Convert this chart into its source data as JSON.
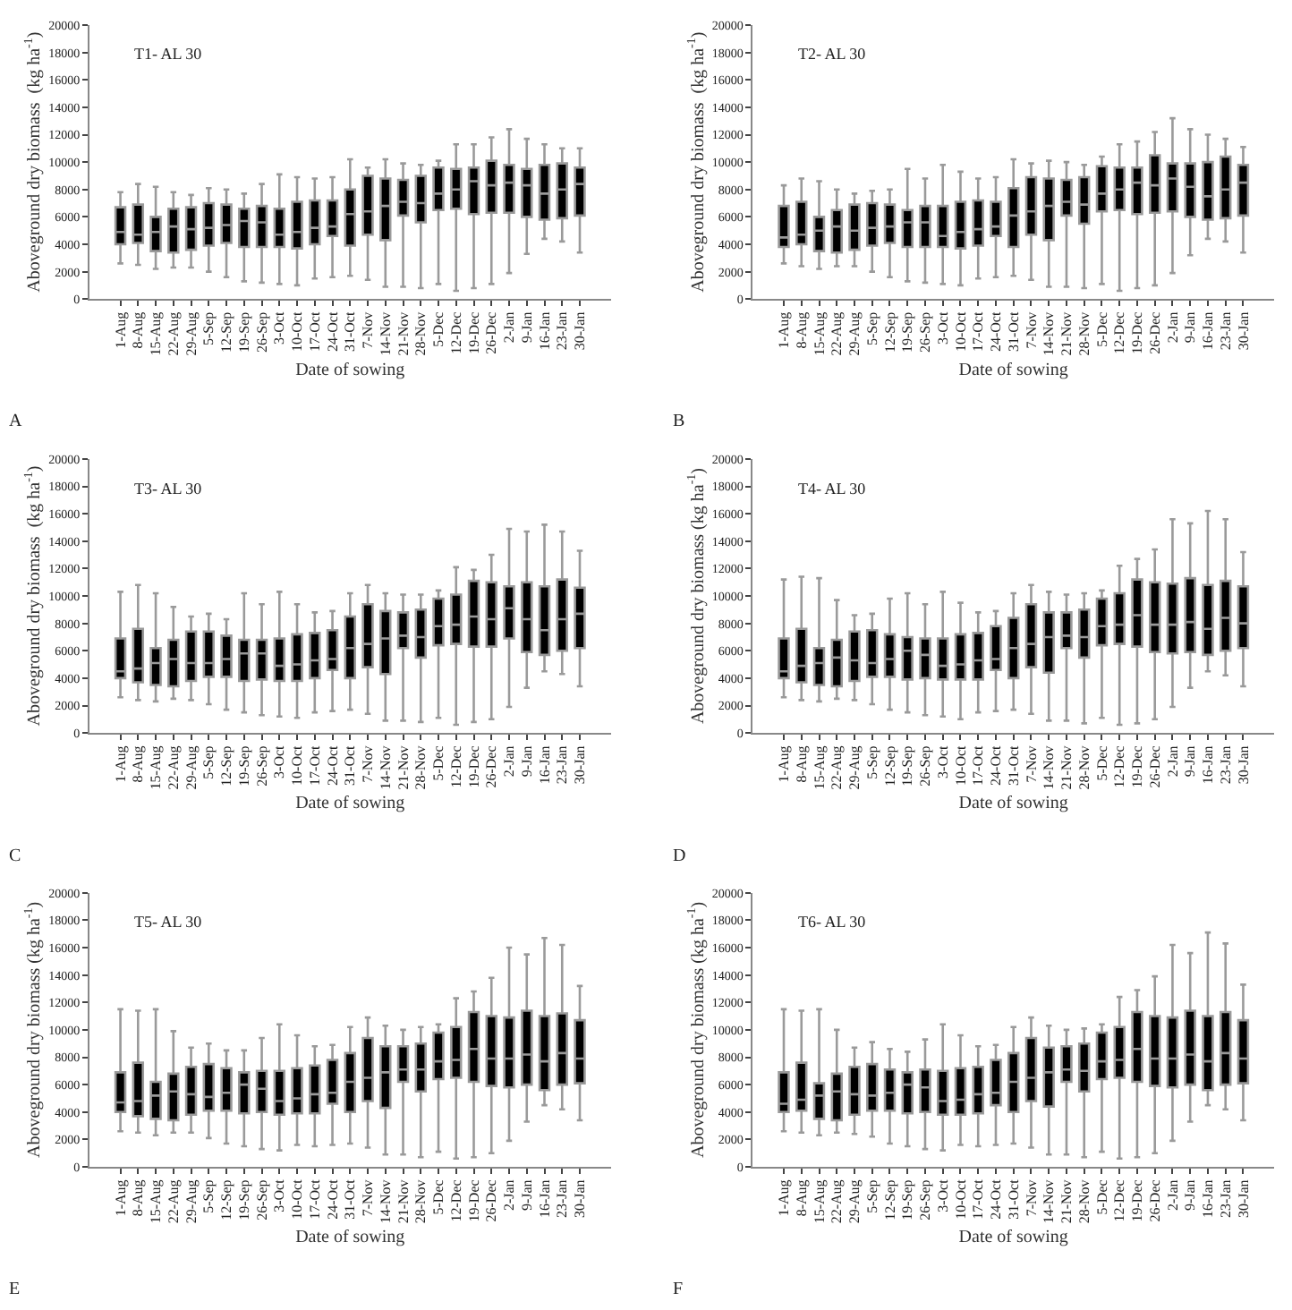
{
  "chart_data": [
    {
      "type": "box",
      "title": "T1- AL 30",
      "xlabel": "Date of sowing",
      "ylabel": "Aboveground dry biomass  (kg ha$^{-1}$)",
      "annotations": [
        "A"
      ],
      "categories": [
        "1-Aug",
        "8-Aug",
        "15-Aug",
        "22-Aug",
        "29-Aug",
        "5-Sep",
        "12-Sep",
        "19-Sep",
        "26-Sep",
        "3-Oct",
        "10-Oct",
        "17-Oct",
        "24-Oct",
        "31-Oct",
        "7-Nov",
        "14-Nov",
        "21-Nov",
        "28-Nov",
        "5-Dec",
        "12-Dec",
        "19-Dec",
        "26-Dec",
        "2-Jan",
        "9-Jan",
        "16-Jan",
        "23-Jan",
        "30-Jan"
      ],
      "ylim": [
        0,
        20000
      ],
      "yticks": [
        0,
        2000,
        4000,
        6000,
        8000,
        10000,
        12000,
        14000,
        16000,
        18000,
        20000
      ],
      "grid": false,
      "legend": false,
      "series": [
        {
          "color": "#000000",
          "boxes": [
            {
              "low": 2600,
              "q1": 4000,
              "median": 4900,
              "q3": 6700,
              "high": 7800
            },
            {
              "low": 2500,
              "q1": 4100,
              "median": 4700,
              "q3": 6900,
              "high": 8400
            },
            {
              "low": 2200,
              "q1": 3500,
              "median": 4900,
              "q3": 6000,
              "high": 8200
            },
            {
              "low": 2300,
              "q1": 3400,
              "median": 5300,
              "q3": 6600,
              "high": 7800
            },
            {
              "low": 2300,
              "q1": 3600,
              "median": 5100,
              "q3": 6700,
              "high": 7600
            },
            {
              "low": 2000,
              "q1": 3900,
              "median": 5200,
              "q3": 7000,
              "high": 8100
            },
            {
              "low": 1600,
              "q1": 4100,
              "median": 5400,
              "q3": 6900,
              "high": 8000
            },
            {
              "low": 1300,
              "q1": 3800,
              "median": 5700,
              "q3": 6600,
              "high": 7700
            },
            {
              "low": 1200,
              "q1": 3800,
              "median": 5600,
              "q3": 6800,
              "high": 8400
            },
            {
              "low": 1100,
              "q1": 3800,
              "median": 4700,
              "q3": 6600,
              "high": 9100
            },
            {
              "low": 1000,
              "q1": 3700,
              "median": 4900,
              "q3": 7100,
              "high": 8900
            },
            {
              "low": 1500,
              "q1": 4000,
              "median": 5200,
              "q3": 7200,
              "high": 8800
            },
            {
              "low": 1600,
              "q1": 4600,
              "median": 5300,
              "q3": 7200,
              "high": 8900
            },
            {
              "low": 1700,
              "q1": 3900,
              "median": 6200,
              "q3": 8000,
              "high": 10200
            },
            {
              "low": 1400,
              "q1": 4700,
              "median": 6400,
              "q3": 9000,
              "high": 9600
            },
            {
              "low": 900,
              "q1": 4300,
              "median": 6800,
              "q3": 8800,
              "high": 10200
            },
            {
              "low": 900,
              "q1": 6100,
              "median": 7100,
              "q3": 8700,
              "high": 9900
            },
            {
              "low": 800,
              "q1": 5600,
              "median": 7000,
              "q3": 9000,
              "high": 9800
            },
            {
              "low": 1100,
              "q1": 6500,
              "median": 7700,
              "q3": 9600,
              "high": 10100
            },
            {
              "low": 600,
              "q1": 6600,
              "median": 8000,
              "q3": 9500,
              "high": 11300
            },
            {
              "low": 800,
              "q1": 6200,
              "median": 8600,
              "q3": 9600,
              "high": 11300
            },
            {
              "low": 1100,
              "q1": 6300,
              "median": 8300,
              "q3": 10100,
              "high": 11800
            },
            {
              "low": 1900,
              "q1": 6300,
              "median": 8500,
              "q3": 9800,
              "high": 12400
            },
            {
              "low": 3300,
              "q1": 6000,
              "median": 8300,
              "q3": 9500,
              "high": 11700
            },
            {
              "low": 4400,
              "q1": 5800,
              "median": 7700,
              "q3": 9800,
              "high": 11300
            },
            {
              "low": 4200,
              "q1": 5900,
              "median": 8000,
              "q3": 9900,
              "high": 11000
            },
            {
              "low": 3400,
              "q1": 6100,
              "median": 8400,
              "q3": 9600,
              "high": 11000
            }
          ]
        }
      ]
    },
    {
      "type": "box",
      "title": "T2- AL 30",
      "xlabel": "Date of sowing",
      "ylabel": "Aboveground dry biomass  (kg ha$^{-1}$)",
      "annotations": [
        "B"
      ],
      "categories": [
        "1-Aug",
        "8-Aug",
        "15-Aug",
        "22-Aug",
        "29-Aug",
        "5-Sep",
        "12-Sep",
        "19-Sep",
        "26-Sep",
        "3-Oct",
        "10-Oct",
        "17-Oct",
        "24-Oct",
        "31-Oct",
        "7-Nov",
        "14-Nov",
        "21-Nov",
        "28-Nov",
        "5-Dec",
        "12-Dec",
        "19-Dec",
        "26-Dec",
        "2-Jan",
        "9-Jan",
        "16-Jan",
        "23-Jan",
        "30-Jan"
      ],
      "ylim": [
        0,
        20000
      ],
      "yticks": [
        0,
        2000,
        4000,
        6000,
        8000,
        10000,
        12000,
        14000,
        16000,
        18000,
        20000
      ],
      "grid": false,
      "legend": false,
      "series": [
        {
          "color": "#000000",
          "boxes": [
            {
              "low": 2600,
              "q1": 3800,
              "median": 4500,
              "q3": 6800,
              "high": 8300
            },
            {
              "low": 2400,
              "q1": 4000,
              "median": 4700,
              "q3": 7100,
              "high": 8800
            },
            {
              "low": 2200,
              "q1": 3500,
              "median": 5000,
              "q3": 6000,
              "high": 8600
            },
            {
              "low": 2400,
              "q1": 3400,
              "median": 5300,
              "q3": 6500,
              "high": 8000
            },
            {
              "low": 2400,
              "q1": 3600,
              "median": 5000,
              "q3": 6900,
              "high": 7700
            },
            {
              "low": 2000,
              "q1": 3900,
              "median": 5200,
              "q3": 7000,
              "high": 7900
            },
            {
              "low": 1600,
              "q1": 4100,
              "median": 5300,
              "q3": 6900,
              "high": 8000
            },
            {
              "low": 1300,
              "q1": 3800,
              "median": 5600,
              "q3": 6500,
              "high": 9500
            },
            {
              "low": 1200,
              "q1": 3800,
              "median": 5600,
              "q3": 6800,
              "high": 8800
            },
            {
              "low": 1100,
              "q1": 3800,
              "median": 4600,
              "q3": 6800,
              "high": 9800
            },
            {
              "low": 1000,
              "q1": 3700,
              "median": 4900,
              "q3": 7100,
              "high": 9300
            },
            {
              "low": 1500,
              "q1": 3900,
              "median": 5100,
              "q3": 7200,
              "high": 8800
            },
            {
              "low": 1600,
              "q1": 4600,
              "median": 5300,
              "q3": 7100,
              "high": 8900
            },
            {
              "low": 1700,
              "q1": 3800,
              "median": 6100,
              "q3": 8100,
              "high": 10200
            },
            {
              "low": 1400,
              "q1": 4700,
              "median": 6400,
              "q3": 8900,
              "high": 9900
            },
            {
              "low": 900,
              "q1": 4300,
              "median": 6800,
              "q3": 8800,
              "high": 10100
            },
            {
              "low": 900,
              "q1": 6100,
              "median": 7100,
              "q3": 8700,
              "high": 10000
            },
            {
              "low": 800,
              "q1": 5500,
              "median": 6900,
              "q3": 8900,
              "high": 9800
            },
            {
              "low": 1100,
              "q1": 6400,
              "median": 7700,
              "q3": 9700,
              "high": 10400
            },
            {
              "low": 600,
              "q1": 6500,
              "median": 8000,
              "q3": 9600,
              "high": 11300
            },
            {
              "low": 800,
              "q1": 6200,
              "median": 8500,
              "q3": 9600,
              "high": 11500
            },
            {
              "low": 1000,
              "q1": 6300,
              "median": 8300,
              "q3": 10500,
              "high": 12200
            },
            {
              "low": 1900,
              "q1": 6400,
              "median": 8800,
              "q3": 9900,
              "high": 13200
            },
            {
              "low": 3200,
              "q1": 6000,
              "median": 8200,
              "q3": 9900,
              "high": 12400
            },
            {
              "low": 4400,
              "q1": 5800,
              "median": 7500,
              "q3": 10000,
              "high": 12000
            },
            {
              "low": 4200,
              "q1": 5900,
              "median": 8000,
              "q3": 10400,
              "high": 11700
            },
            {
              "low": 3400,
              "q1": 6100,
              "median": 8500,
              "q3": 9800,
              "high": 11100
            }
          ]
        }
      ]
    },
    {
      "type": "box",
      "title": "T3- AL 30",
      "xlabel": "Date of sowing",
      "ylabel": "Aboveground dry biomass  (kg ha$^{-1}$)",
      "annotations": [
        "C"
      ],
      "categories": [
        "1-Aug",
        "8-Aug",
        "15-Aug",
        "22-Aug",
        "29-Aug",
        "5-Sep",
        "12-Sep",
        "19-Sep",
        "26-Sep",
        "3-Oct",
        "10-Oct",
        "17-Oct",
        "24-Oct",
        "31-Oct",
        "7-Nov",
        "14-Nov",
        "21-Nov",
        "28-Nov",
        "5-Dec",
        "12-Dec",
        "19-Dec",
        "26-Dec",
        "2-Jan",
        "9-Jan",
        "16-Jan",
        "23-Jan",
        "30-Jan"
      ],
      "ylim": [
        0,
        20000
      ],
      "yticks": [
        0,
        2000,
        4000,
        6000,
        8000,
        10000,
        12000,
        14000,
        16000,
        18000,
        20000
      ],
      "grid": false,
      "legend": false,
      "series": [
        {
          "color": "#000000",
          "boxes": [
            {
              "low": 2600,
              "q1": 4000,
              "median": 4500,
              "q3": 6900,
              "high": 10300
            },
            {
              "low": 2400,
              "q1": 3700,
              "median": 4700,
              "q3": 7600,
              "high": 10800
            },
            {
              "low": 2300,
              "q1": 3500,
              "median": 5100,
              "q3": 6200,
              "high": 10200
            },
            {
              "low": 2500,
              "q1": 3400,
              "median": 5400,
              "q3": 6800,
              "high": 9200
            },
            {
              "low": 2400,
              "q1": 3800,
              "median": 5100,
              "q3": 7400,
              "high": 8500
            },
            {
              "low": 2100,
              "q1": 4100,
              "median": 5100,
              "q3": 7400,
              "high": 8700
            },
            {
              "low": 1700,
              "q1": 4100,
              "median": 5400,
              "q3": 7100,
              "high": 8300
            },
            {
              "low": 1500,
              "q1": 3800,
              "median": 5800,
              "q3": 6800,
              "high": 10200
            },
            {
              "low": 1300,
              "q1": 3900,
              "median": 5800,
              "q3": 6800,
              "high": 9400
            },
            {
              "low": 1200,
              "q1": 3800,
              "median": 4900,
              "q3": 6900,
              "high": 10300
            },
            {
              "low": 1100,
              "q1": 3800,
              "median": 5000,
              "q3": 7200,
              "high": 9400
            },
            {
              "low": 1500,
              "q1": 4000,
              "median": 5300,
              "q3": 7300,
              "high": 8800
            },
            {
              "low": 1600,
              "q1": 4600,
              "median": 5400,
              "q3": 7500,
              "high": 8900
            },
            {
              "low": 1700,
              "q1": 4000,
              "median": 6200,
              "q3": 8500,
              "high": 10200
            },
            {
              "low": 1400,
              "q1": 4800,
              "median": 6500,
              "q3": 9400,
              "high": 10800
            },
            {
              "low": 900,
              "q1": 4300,
              "median": 6900,
              "q3": 8900,
              "high": 10200
            },
            {
              "low": 900,
              "q1": 6200,
              "median": 7100,
              "q3": 8800,
              "high": 10100
            },
            {
              "low": 800,
              "q1": 5500,
              "median": 7000,
              "q3": 9000,
              "high": 10100
            },
            {
              "low": 1100,
              "q1": 6400,
              "median": 7800,
              "q3": 9800,
              "high": 10400
            },
            {
              "low": 600,
              "q1": 6500,
              "median": 7900,
              "q3": 10100,
              "high": 12100
            },
            {
              "low": 800,
              "q1": 6300,
              "median": 8500,
              "q3": 11100,
              "high": 11900
            },
            {
              "low": 1000,
              "q1": 6300,
              "median": 8300,
              "q3": 11000,
              "high": 13000
            },
            {
              "low": 1900,
              "q1": 6900,
              "median": 9100,
              "q3": 10700,
              "high": 14900
            },
            {
              "low": 3300,
              "q1": 5900,
              "median": 8300,
              "q3": 11000,
              "high": 14700
            },
            {
              "low": 4500,
              "q1": 5700,
              "median": 7500,
              "q3": 10700,
              "high": 15200
            },
            {
              "low": 4300,
              "q1": 6000,
              "median": 8300,
              "q3": 11200,
              "high": 14700
            },
            {
              "low": 3400,
              "q1": 6200,
              "median": 8700,
              "q3": 10600,
              "high": 13300
            }
          ]
        }
      ]
    },
    {
      "type": "box",
      "title": "T4- AL 30",
      "xlabel": "Date of sowing",
      "ylabel": "Aboveground dry biomass (kg ha$^{-1}$)",
      "annotations": [
        "D"
      ],
      "categories": [
        "1-Aug",
        "8-Aug",
        "15-Aug",
        "22-Aug",
        "29-Aug",
        "5-Sep",
        "12-Sep",
        "19-Sep",
        "26-Sep",
        "3-Oct",
        "10-Oct",
        "17-Oct",
        "24-Oct",
        "31-Oct",
        "7-Nov",
        "14-Nov",
        "21-Nov",
        "28-Nov",
        "5-Dec",
        "12-Dec",
        "19-Dec",
        "26-Dec",
        "2-Jan",
        "9-Jan",
        "16-Jan",
        "23-Jan",
        "30-Jan"
      ],
      "ylim": [
        0,
        20000
      ],
      "yticks": [
        0,
        2000,
        4000,
        6000,
        8000,
        10000,
        12000,
        14000,
        16000,
        18000,
        20000
      ],
      "grid": false,
      "legend": false,
      "series": [
        {
          "color": "#000000",
          "boxes": [
            {
              "low": 2600,
              "q1": 4000,
              "median": 4500,
              "q3": 6900,
              "high": 11200
            },
            {
              "low": 2400,
              "q1": 3700,
              "median": 4900,
              "q3": 7600,
              "high": 11400
            },
            {
              "low": 2300,
              "q1": 3500,
              "median": 5100,
              "q3": 6200,
              "high": 11300
            },
            {
              "low": 2500,
              "q1": 3400,
              "median": 5500,
              "q3": 6800,
              "high": 9700
            },
            {
              "low": 2400,
              "q1": 3800,
              "median": 5300,
              "q3": 7400,
              "high": 8600
            },
            {
              "low": 2100,
              "q1": 4100,
              "median": 5100,
              "q3": 7500,
              "high": 8700
            },
            {
              "low": 1700,
              "q1": 4100,
              "median": 5400,
              "q3": 7200,
              "high": 9800
            },
            {
              "low": 1500,
              "q1": 3900,
              "median": 6000,
              "q3": 7000,
              "high": 10200
            },
            {
              "low": 1300,
              "q1": 4000,
              "median": 5700,
              "q3": 6900,
              "high": 9400
            },
            {
              "low": 1200,
              "q1": 3900,
              "median": 4900,
              "q3": 6900,
              "high": 10300
            },
            {
              "low": 1000,
              "q1": 3900,
              "median": 5000,
              "q3": 7200,
              "high": 9500
            },
            {
              "low": 1500,
              "q1": 3900,
              "median": 5300,
              "q3": 7300,
              "high": 8800
            },
            {
              "low": 1600,
              "q1": 4600,
              "median": 5400,
              "q3": 7800,
              "high": 8900
            },
            {
              "low": 1700,
              "q1": 4000,
              "median": 6200,
              "q3": 8400,
              "high": 10200
            },
            {
              "low": 1400,
              "q1": 4800,
              "median": 6500,
              "q3": 9400,
              "high": 10800
            },
            {
              "low": 900,
              "q1": 4400,
              "median": 7000,
              "q3": 8800,
              "high": 10300
            },
            {
              "low": 900,
              "q1": 6200,
              "median": 7100,
              "q3": 8800,
              "high": 10100
            },
            {
              "low": 700,
              "q1": 5500,
              "median": 7000,
              "q3": 9000,
              "high": 10200
            },
            {
              "low": 1100,
              "q1": 6400,
              "median": 7800,
              "q3": 9800,
              "high": 10400
            },
            {
              "low": 600,
              "q1": 6500,
              "median": 7900,
              "q3": 10200,
              "high": 12200
            },
            {
              "low": 700,
              "q1": 6300,
              "median": 8600,
              "q3": 11200,
              "high": 12700
            },
            {
              "low": 1000,
              "q1": 5900,
              "median": 7900,
              "q3": 11000,
              "high": 13400
            },
            {
              "low": 1900,
              "q1": 5800,
              "median": 7900,
              "q3": 10900,
              "high": 15600
            },
            {
              "low": 3300,
              "q1": 5900,
              "median": 8100,
              "q3": 11300,
              "high": 15300
            },
            {
              "low": 4500,
              "q1": 5700,
              "median": 7600,
              "q3": 10800,
              "high": 16200
            },
            {
              "low": 4200,
              "q1": 6000,
              "median": 8400,
              "q3": 11100,
              "high": 15600
            },
            {
              "low": 3400,
              "q1": 6200,
              "median": 8000,
              "q3": 10700,
              "high": 13200
            }
          ]
        }
      ]
    },
    {
      "type": "box",
      "title": "T5- AL 30",
      "xlabel": "Date of sowing",
      "ylabel": "Aboveground dry biomass (kg ha$^{-1}$)",
      "annotations": [
        "E"
      ],
      "categories": [
        "1-Aug",
        "8-Aug",
        "15-Aug",
        "22-Aug",
        "29-Aug",
        "5-Sep",
        "12-Sep",
        "19-Sep",
        "26-Sep",
        "3-Oct",
        "10-Oct",
        "17-Oct",
        "24-Oct",
        "31-Oct",
        "7-Nov",
        "14-Nov",
        "21-Nov",
        "28-Nov",
        "5-Dec",
        "12-Dec",
        "19-Dec",
        "26-Dec",
        "2-Jan",
        "9-Jan",
        "16-Jan",
        "23-Jan",
        "30-Jan"
      ],
      "ylim": [
        0,
        20000
      ],
      "yticks": [
        0,
        2000,
        4000,
        6000,
        8000,
        10000,
        12000,
        14000,
        16000,
        18000,
        20000
      ],
      "grid": false,
      "legend": false,
      "series": [
        {
          "color": "#000000",
          "boxes": [
            {
              "low": 2600,
              "q1": 4000,
              "median": 4700,
              "q3": 6900,
              "high": 11500
            },
            {
              "low": 2500,
              "q1": 3700,
              "median": 4800,
              "q3": 7600,
              "high": 11400
            },
            {
              "low": 2300,
              "q1": 3500,
              "median": 5200,
              "q3": 6200,
              "high": 11500
            },
            {
              "low": 2500,
              "q1": 3400,
              "median": 5500,
              "q3": 6800,
              "high": 9900
            },
            {
              "low": 2500,
              "q1": 3800,
              "median": 5300,
              "q3": 7300,
              "high": 8700
            },
            {
              "low": 2100,
              "q1": 4100,
              "median": 5100,
              "q3": 7500,
              "high": 9000
            },
            {
              "low": 1700,
              "q1": 4100,
              "median": 5400,
              "q3": 7200,
              "high": 8500
            },
            {
              "low": 1500,
              "q1": 3900,
              "median": 6000,
              "q3": 6900,
              "high": 8500
            },
            {
              "low": 1300,
              "q1": 4000,
              "median": 5700,
              "q3": 7000,
              "high": 9400
            },
            {
              "low": 1200,
              "q1": 3800,
              "median": 4800,
              "q3": 7000,
              "high": 10400
            },
            {
              "low": 1600,
              "q1": 3900,
              "median": 5000,
              "q3": 7200,
              "high": 9600
            },
            {
              "low": 1500,
              "q1": 3900,
              "median": 5300,
              "q3": 7400,
              "high": 8800
            },
            {
              "low": 1600,
              "q1": 4600,
              "median": 5400,
              "q3": 7800,
              "high": 8900
            },
            {
              "low": 1700,
              "q1": 4000,
              "median": 6200,
              "q3": 8300,
              "high": 10200
            },
            {
              "low": 1400,
              "q1": 4800,
              "median": 6500,
              "q3": 9400,
              "high": 10900
            },
            {
              "low": 900,
              "q1": 4300,
              "median": 6900,
              "q3": 8800,
              "high": 10300
            },
            {
              "low": 900,
              "q1": 6200,
              "median": 7100,
              "q3": 8800,
              "high": 10000
            },
            {
              "low": 700,
              "q1": 5500,
              "median": 7100,
              "q3": 9000,
              "high": 10200
            },
            {
              "low": 1100,
              "q1": 6400,
              "median": 7700,
              "q3": 9800,
              "high": 10400
            },
            {
              "low": 600,
              "q1": 6500,
              "median": 7800,
              "q3": 10200,
              "high": 12300
            },
            {
              "low": 700,
              "q1": 6200,
              "median": 8600,
              "q3": 11300,
              "high": 12800
            },
            {
              "low": 1000,
              "q1": 5900,
              "median": 7900,
              "q3": 11000,
              "high": 13800
            },
            {
              "low": 1900,
              "q1": 5800,
              "median": 7900,
              "q3": 10900,
              "high": 16000
            },
            {
              "low": 3300,
              "q1": 6000,
              "median": 8200,
              "q3": 11400,
              "high": 15500
            },
            {
              "low": 4500,
              "q1": 5600,
              "median": 7700,
              "q3": 11000,
              "high": 16700
            },
            {
              "low": 4200,
              "q1": 6000,
              "median": 8300,
              "q3": 11200,
              "high": 16200
            },
            {
              "low": 3400,
              "q1": 6100,
              "median": 7900,
              "q3": 10700,
              "high": 13200
            }
          ]
        }
      ]
    },
    {
      "type": "box",
      "title": "T6- AL 30",
      "xlabel": "Date of sowing",
      "ylabel": "Aboveground dry biomass (kg ha$^{-1}$)",
      "annotations": [
        "F"
      ],
      "categories": [
        "1-Aug",
        "8-Aug",
        "15-Aug",
        "22-Aug",
        "29-Aug",
        "5-Sep",
        "12-Sep",
        "19-Sep",
        "26-Sep",
        "3-Oct",
        "10-Oct",
        "17-Oct",
        "24-Oct",
        "31-Oct",
        "7-Nov",
        "14-Nov",
        "21-Nov",
        "28-Nov",
        "5-Dec",
        "12-Dec",
        "19-Dec",
        "26-Dec",
        "2-Jan",
        "9-Jan",
        "16-Jan",
        "23-Jan",
        "30-Jan"
      ],
      "ylim": [
        0,
        20000
      ],
      "yticks": [
        0,
        2000,
        4000,
        6000,
        8000,
        10000,
        12000,
        14000,
        16000,
        18000,
        20000
      ],
      "grid": false,
      "legend": false,
      "series": [
        {
          "color": "#000000",
          "boxes": [
            {
              "low": 2600,
              "q1": 4000,
              "median": 4600,
              "q3": 6900,
              "high": 11500
            },
            {
              "low": 2500,
              "q1": 4100,
              "median": 4900,
              "q3": 7600,
              "high": 11400
            },
            {
              "low": 2300,
              "q1": 3500,
              "median": 5200,
              "q3": 6100,
              "high": 11500
            },
            {
              "low": 2500,
              "q1": 3400,
              "median": 5500,
              "q3": 6800,
              "high": 10000
            },
            {
              "low": 2400,
              "q1": 3800,
              "median": 5300,
              "q3": 7300,
              "high": 8700
            },
            {
              "low": 2200,
              "q1": 4100,
              "median": 5200,
              "q3": 7500,
              "high": 9100
            },
            {
              "low": 1700,
              "q1": 4100,
              "median": 5400,
              "q3": 7100,
              "high": 8600
            },
            {
              "low": 1500,
              "q1": 3900,
              "median": 6000,
              "q3": 6900,
              "high": 8400
            },
            {
              "low": 1300,
              "q1": 4000,
              "median": 5800,
              "q3": 7100,
              "high": 9300
            },
            {
              "low": 1200,
              "q1": 3800,
              "median": 4800,
              "q3": 7000,
              "high": 10400
            },
            {
              "low": 1600,
              "q1": 3800,
              "median": 4900,
              "q3": 7200,
              "high": 9600
            },
            {
              "low": 1500,
              "q1": 3900,
              "median": 5300,
              "q3": 7300,
              "high": 8800
            },
            {
              "low": 1600,
              "q1": 4500,
              "median": 5400,
              "q3": 7800,
              "high": 8900
            },
            {
              "low": 1700,
              "q1": 4000,
              "median": 6200,
              "q3": 8300,
              "high": 10200
            },
            {
              "low": 1400,
              "q1": 4800,
              "median": 6500,
              "q3": 9400,
              "high": 10900
            },
            {
              "low": 900,
              "q1": 4400,
              "median": 6900,
              "q3": 8700,
              "high": 10300
            },
            {
              "low": 900,
              "q1": 6200,
              "median": 7100,
              "q3": 8800,
              "high": 10000
            },
            {
              "low": 700,
              "q1": 5500,
              "median": 7000,
              "q3": 9000,
              "high": 10100
            },
            {
              "low": 1100,
              "q1": 6400,
              "median": 7700,
              "q3": 9800,
              "high": 10400
            },
            {
              "low": 600,
              "q1": 6500,
              "median": 7800,
              "q3": 10200,
              "high": 12400
            },
            {
              "low": 700,
              "q1": 6200,
              "median": 8600,
              "q3": 11300,
              "high": 12900
            },
            {
              "low": 1000,
              "q1": 5900,
              "median": 7900,
              "q3": 11000,
              "high": 13900
            },
            {
              "low": 1900,
              "q1": 5800,
              "median": 7900,
              "q3": 10900,
              "high": 16200
            },
            {
              "low": 3300,
              "q1": 6000,
              "median": 8200,
              "q3": 11400,
              "high": 15600
            },
            {
              "low": 4500,
              "q1": 5600,
              "median": 7700,
              "q3": 11000,
              "high": 17100
            },
            {
              "low": 4200,
              "q1": 6000,
              "median": 8300,
              "q3": 11300,
              "high": 16300
            },
            {
              "low": 3400,
              "q1": 6100,
              "median": 7900,
              "q3": 10700,
              "high": 13300
            }
          ]
        }
      ]
    }
  ]
}
